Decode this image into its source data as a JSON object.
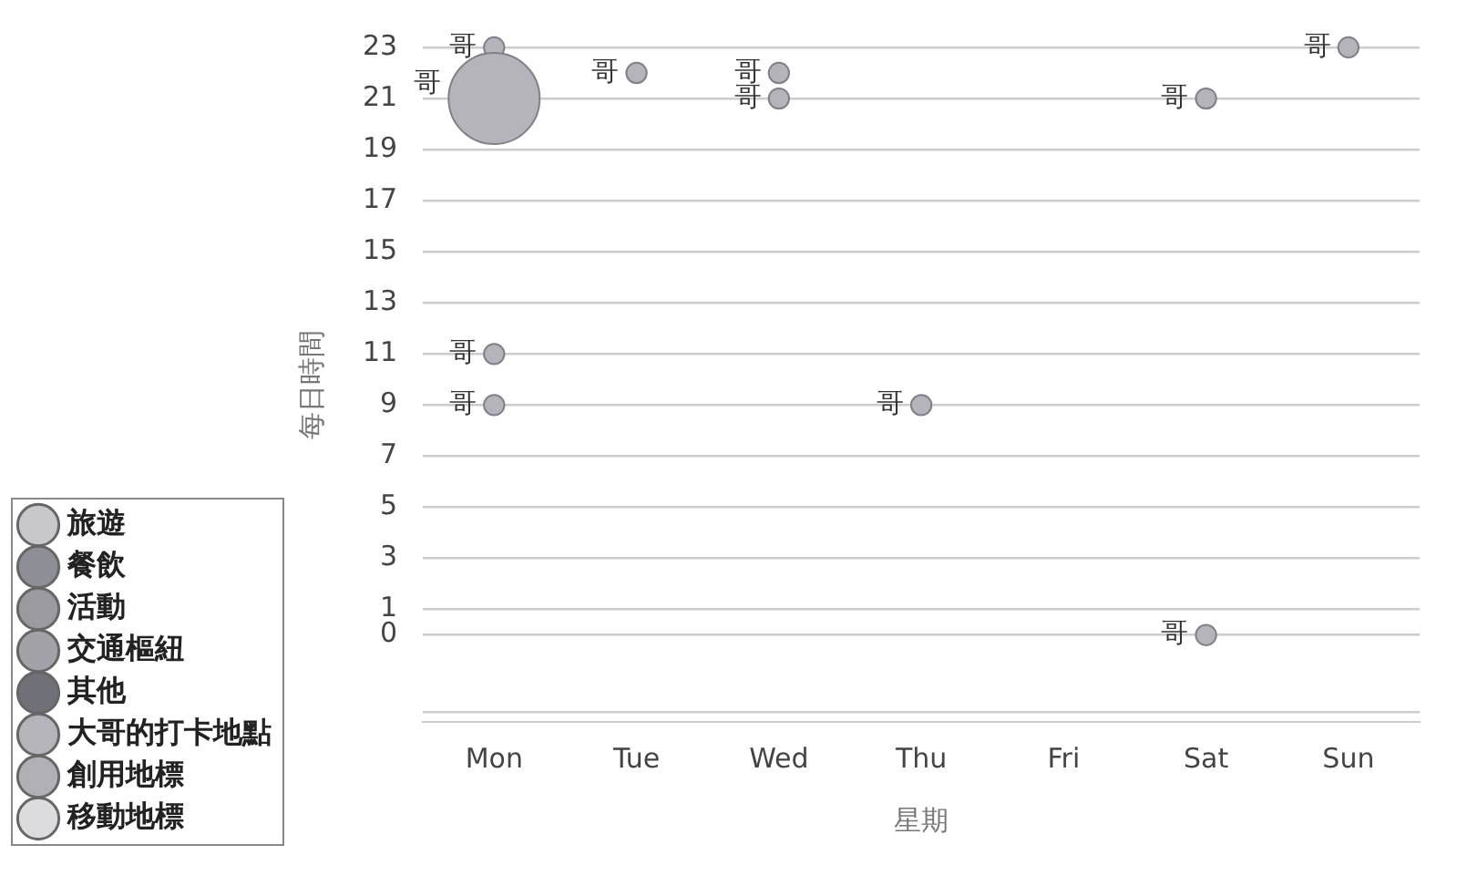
{
  "chart_data": {
    "type": "bubble",
    "xlabel": "星期",
    "ylabel": "每日時間",
    "categories": [
      "Mon",
      "Tue",
      "Wed",
      "Thu",
      "Fri",
      "Sat",
      "Sun"
    ],
    "ylim": [
      -3.4,
      23
    ],
    "yticks": [
      23,
      21,
      19,
      17,
      15,
      13,
      11,
      9,
      7,
      5,
      3,
      1,
      0,
      {
        "value": -3,
        "label": null
      }
    ],
    "grid": "y",
    "legend": "bottom left",
    "series": [
      {
        "name": "旅遊",
        "color": "#c8c8cc",
        "values": [
          null,
          null,
          null,
          null,
          null,
          null,
          null
        ]
      },
      {
        "name": "餐飲",
        "color": "#8e8e96",
        "values": [
          null,
          null,
          null,
          null,
          null,
          null,
          null
        ]
      },
      {
        "name": "活動",
        "color": "#9a9aa0",
        "values": [
          null,
          null,
          null,
          null,
          null,
          null,
          null
        ]
      },
      {
        "name": "交通樞紐",
        "color": "#a2a2a8",
        "values": [
          null,
          null,
          null,
          null,
          null,
          null,
          null
        ]
      },
      {
        "name": "其他",
        "color": "#707078",
        "values": [
          null,
          null,
          null,
          null,
          null,
          null,
          null
        ]
      },
      {
        "name": "大哥的打卡地點",
        "color": "#b4b4ba",
        "x": [
          "Mon",
          "Mon",
          "Tue",
          "Wed",
          "Wed",
          "Mon",
          "Mon",
          "Thu",
          "Sat",
          "Sat",
          "Sun"
        ],
        "values": [
          23,
          21,
          22,
          22,
          21,
          11,
          9,
          9,
          21,
          0,
          23
        ],
        "sizes": [
          0.05,
          1,
          0.05,
          0.05,
          0.05,
          0.05,
          0.05,
          0.05,
          0.05,
          0.05,
          0.05
        ],
        "value_labels": [
          "哥",
          "哥",
          "哥",
          "哥",
          "哥",
          "哥",
          "哥",
          "哥",
          "哥",
          "哥",
          "哥"
        ]
      },
      {
        "name": "創用地標",
        "color": "#b0b0b6",
        "values": [
          null,
          null,
          null,
          null,
          null,
          null,
          null
        ]
      },
      {
        "name": "移動地標",
        "color": "#dcdcde",
        "values": [
          null,
          null,
          null,
          null,
          null,
          null,
          null
        ]
      }
    ]
  }
}
